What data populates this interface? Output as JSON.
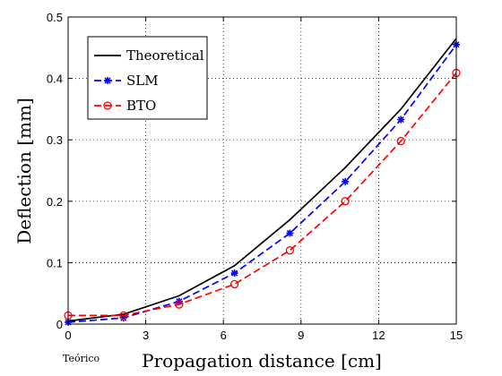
{
  "footnote": "Teórico",
  "chart_data": {
    "type": "line",
    "xlabel": "Propagation distance [cm]",
    "ylabel": "Deflection [mm]",
    "xlim": [
      0,
      15
    ],
    "ylim": [
      0,
      0.5
    ],
    "xticks": [
      0,
      3,
      6,
      9,
      12,
      15
    ],
    "yticks": [
      0,
      0.1,
      0.2,
      0.3,
      0.4,
      0.5
    ],
    "xtick_labels": [
      "0",
      "3",
      "6",
      "9",
      "12",
      "15"
    ],
    "ytick_labels": [
      "0",
      "0.1",
      "0.2",
      "0.3",
      "0.4",
      "0.5"
    ],
    "grid": "dotted",
    "legend_position": "top-left",
    "series": [
      {
        "name": "Theoretical",
        "color": "#000000",
        "style": "solid",
        "marker": "none",
        "x": [
          0,
          2.14,
          4.29,
          6.43,
          8.57,
          10.71,
          12.86,
          15
        ],
        "y": [
          0.005,
          0.016,
          0.046,
          0.095,
          0.17,
          0.255,
          0.35,
          0.465
        ]
      },
      {
        "name": "SLM",
        "color": "#0000ff",
        "style": "dashed",
        "marker": "star",
        "x": [
          0,
          2.14,
          4.29,
          6.43,
          8.57,
          10.71,
          12.86,
          15
        ],
        "y": [
          0.003,
          0.01,
          0.037,
          0.083,
          0.148,
          0.232,
          0.333,
          0.455
        ]
      },
      {
        "name": "BTO",
        "color": "#ff0000",
        "style": "dashed",
        "marker": "circle",
        "x": [
          0,
          2.14,
          4.29,
          6.43,
          8.57,
          10.71,
          12.86,
          15
        ],
        "y": [
          0.014,
          0.014,
          0.032,
          0.065,
          0.12,
          0.2,
          0.298,
          0.409
        ]
      }
    ]
  }
}
